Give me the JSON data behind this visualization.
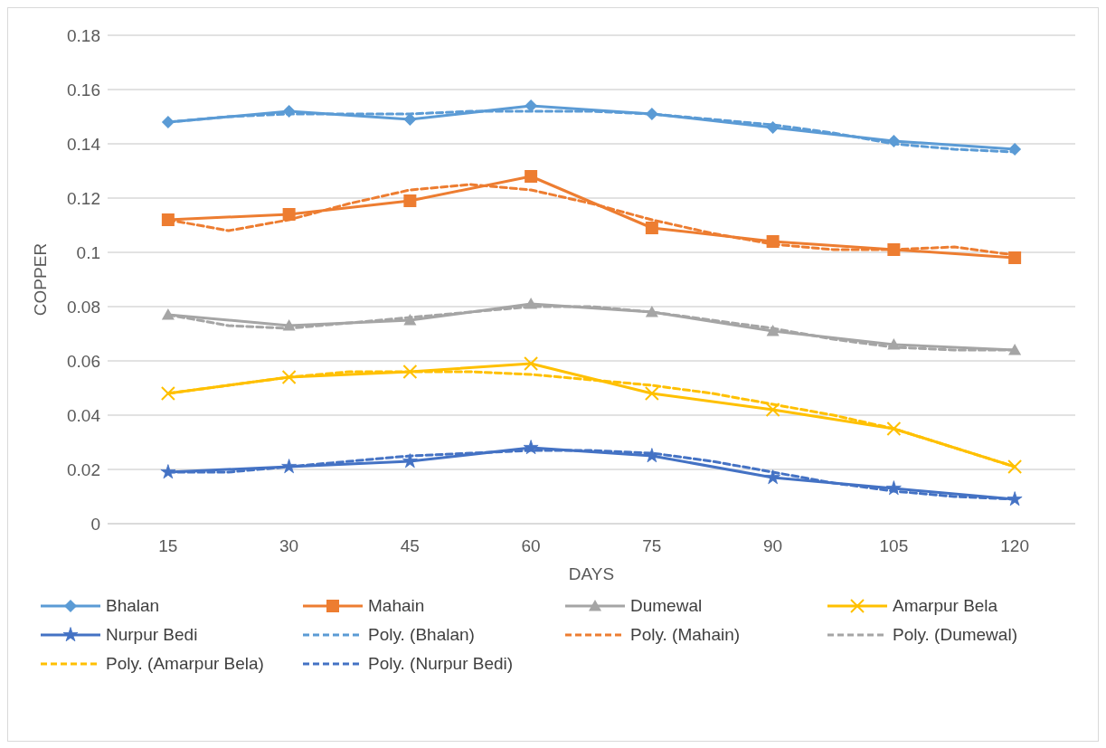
{
  "chart_data": {
    "type": "line",
    "xlabel": "DAYS",
    "ylabel": "COPPER",
    "x": [
      15,
      30,
      45,
      60,
      75,
      90,
      105,
      120
    ],
    "xlim": [
      7.5,
      127.5
    ],
    "xticks": [
      15,
      30,
      45,
      60,
      75,
      90,
      105,
      120
    ],
    "ylim": [
      0,
      0.18
    ],
    "yticks": [
      0,
      0.02,
      0.04,
      0.06,
      0.08,
      0.1,
      0.12,
      0.14,
      0.16,
      0.18
    ],
    "grid": "y",
    "legend": "bottom",
    "line_style": "solid",
    "series": [
      {
        "name": "Bhalan",
        "color": "#5b9bd5",
        "marker": "diamond",
        "values": [
          0.148,
          0.152,
          0.149,
          0.154,
          0.151,
          0.146,
          0.141,
          0.138
        ]
      },
      {
        "name": "Mahain",
        "color": "#ed7d31",
        "marker": "square",
        "values": [
          0.112,
          0.114,
          0.119,
          0.128,
          0.109,
          0.104,
          0.101,
          0.098
        ]
      },
      {
        "name": "Dumewal",
        "color": "#a5a5a5",
        "marker": "triangle",
        "values": [
          0.077,
          0.073,
          0.075,
          0.081,
          0.078,
          0.071,
          0.066,
          0.064
        ]
      },
      {
        "name": "Amarpur Bela",
        "color": "#ffc000",
        "marker": "cross",
        "values": [
          0.048,
          0.054,
          0.056,
          0.059,
          0.048,
          0.042,
          0.035,
          0.021
        ]
      },
      {
        "name": "Nurpur Bedi",
        "color": "#4472c4",
        "marker": "star",
        "values": [
          0.019,
          0.021,
          0.023,
          0.028,
          0.025,
          0.017,
          0.013,
          0.009
        ]
      },
      {
        "name": "Poly. (Bhalan)",
        "color": "#5b9bd5",
        "marker": "none",
        "line_style": "dashed",
        "x": [
          15,
          22.5,
          30,
          37.5,
          45,
          52.5,
          60,
          67.5,
          75,
          82.5,
          90,
          97.5,
          105,
          112.5,
          120
        ],
        "values": [
          0.148,
          0.15,
          0.151,
          0.151,
          0.151,
          0.152,
          0.152,
          0.152,
          0.151,
          0.149,
          0.147,
          0.144,
          0.14,
          0.138,
          0.137
        ]
      },
      {
        "name": "Poly. (Mahain)",
        "color": "#ed7d31",
        "marker": "none",
        "line_style": "dashed",
        "x": [
          15,
          22.5,
          30,
          37.5,
          45,
          52.5,
          60,
          67.5,
          75,
          82.5,
          90,
          97.5,
          105,
          112.5,
          120
        ],
        "values": [
          0.112,
          0.108,
          0.112,
          0.118,
          0.123,
          0.125,
          0.123,
          0.118,
          0.112,
          0.107,
          0.103,
          0.101,
          0.101,
          0.102,
          0.099
        ]
      },
      {
        "name": "Poly. (Dumewal)",
        "color": "#a5a5a5",
        "marker": "none",
        "line_style": "dashed",
        "x": [
          15,
          22.5,
          30,
          37.5,
          45,
          52.5,
          60,
          67.5,
          75,
          82.5,
          90,
          97.5,
          105,
          112.5,
          120
        ],
        "values": [
          0.077,
          0.073,
          0.072,
          0.074,
          0.076,
          0.078,
          0.08,
          0.08,
          0.078,
          0.075,
          0.072,
          0.068,
          0.065,
          0.064,
          0.064
        ]
      },
      {
        "name": "Poly. (Amarpur Bela)",
        "color": "#ffc000",
        "marker": "none",
        "line_style": "dashed",
        "x": [
          15,
          22.5,
          30,
          37.5,
          45,
          52.5,
          60,
          67.5,
          75,
          82.5,
          90,
          97.5,
          105,
          112.5,
          120
        ],
        "values": [
          0.048,
          0.051,
          0.054,
          0.056,
          0.056,
          0.056,
          0.055,
          0.053,
          0.051,
          0.048,
          0.044,
          0.04,
          0.035,
          0.028,
          0.021
        ]
      },
      {
        "name": "Poly. (Nurpur Bedi)",
        "color": "#4472c4",
        "marker": "none",
        "line_style": "dashed",
        "x": [
          15,
          22.5,
          30,
          37.5,
          45,
          52.5,
          60,
          67.5,
          75,
          82.5,
          90,
          97.5,
          105,
          112.5,
          120
        ],
        "values": [
          0.019,
          0.019,
          0.021,
          0.023,
          0.025,
          0.026,
          0.027,
          0.027,
          0.026,
          0.023,
          0.019,
          0.015,
          0.012,
          0.01,
          0.009
        ]
      }
    ]
  }
}
